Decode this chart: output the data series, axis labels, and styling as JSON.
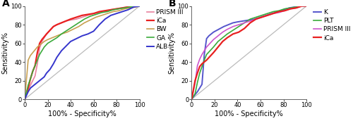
{
  "panel_A": {
    "title": "A",
    "xlabel": "100% - Specificity%",
    "ylabel": "Sensitivity%",
    "curves": {
      "PRISM III": {
        "color": "#e8819e",
        "linewidth": 1.2,
        "x": [
          0,
          3,
          5,
          7,
          9,
          11,
          13,
          15,
          17,
          19,
          22,
          25,
          28,
          32,
          36,
          40,
          45,
          50,
          55,
          60,
          65,
          70,
          75,
          80,
          85,
          90,
          95,
          100
        ],
        "y": [
          0,
          10,
          15,
          20,
          25,
          38,
          55,
          62,
          66,
          70,
          74,
          78,
          80,
          82,
          84,
          85,
          86,
          88,
          90,
          92,
          93,
          94,
          96,
          97,
          98,
          99,
          100,
          100
        ]
      },
      "iCa": {
        "color": "#e82020",
        "linewidth": 1.6,
        "x": [
          0,
          3,
          5,
          7,
          9,
          11,
          13,
          15,
          17,
          19,
          22,
          25,
          28,
          32,
          36,
          40,
          45,
          50,
          55,
          60,
          65,
          70,
          75,
          80,
          85,
          90,
          95,
          100
        ],
        "y": [
          0,
          12,
          22,
          30,
          36,
          50,
          60,
          64,
          67,
          70,
          74,
          78,
          80,
          82,
          84,
          86,
          88,
          90,
          91,
          92,
          94,
          95,
          96,
          97,
          98,
          99,
          100,
          100
        ]
      },
      "BW": {
        "color": "#c8a050",
        "linewidth": 1.2,
        "x": [
          0,
          3,
          5,
          7,
          9,
          11,
          13,
          15,
          17,
          20,
          24,
          28,
          32,
          37,
          42,
          47,
          52,
          57,
          62,
          67,
          72,
          77,
          82,
          87,
          92,
          97,
          100
        ],
        "y": [
          0,
          42,
          47,
          50,
          53,
          56,
          58,
          60,
          62,
          64,
          66,
          68,
          70,
          72,
          75,
          78,
          82,
          85,
          88,
          90,
          92,
          94,
          95,
          97,
          98,
          99,
          100
        ]
      },
      "GA": {
        "color": "#3aaa3a",
        "linewidth": 1.2,
        "x": [
          0,
          3,
          5,
          7,
          9,
          11,
          13,
          15,
          17,
          20,
          24,
          28,
          32,
          37,
          42,
          47,
          52,
          57,
          62,
          67,
          72,
          77,
          82,
          87,
          92,
          97,
          100
        ],
        "y": [
          0,
          15,
          22,
          30,
          36,
          42,
          48,
          52,
          56,
          60,
          63,
          66,
          70,
          74,
          78,
          82,
          86,
          89,
          91,
          93,
          94,
          96,
          97,
          98,
          99,
          100,
          100
        ]
      },
      "ALB": {
        "color": "#3535cc",
        "linewidth": 1.4,
        "x": [
          0,
          3,
          5,
          7,
          9,
          11,
          13,
          15,
          17,
          19,
          22,
          25,
          28,
          32,
          36,
          40,
          45,
          50,
          55,
          60,
          65,
          70,
          75,
          80,
          85,
          90,
          95,
          100
        ],
        "y": [
          0,
          8,
          12,
          14,
          16,
          18,
          20,
          22,
          24,
          28,
          32,
          38,
          45,
          52,
          57,
          62,
          65,
          68,
          70,
          73,
          80,
          86,
          90,
          92,
          94,
          96,
          99,
          100
        ]
      }
    },
    "legend_order": [
      "PRISM III",
      "iCa",
      "BW",
      "GA",
      "ALB"
    ]
  },
  "panel_B": {
    "title": "B",
    "xlabel": "100% - Specificity%",
    "ylabel": "Sensitivity%",
    "curves": {
      "K": {
        "color": "#5555cc",
        "linewidth": 1.4,
        "x": [
          0,
          3,
          5,
          7,
          9,
          11,
          13,
          15,
          17,
          19,
          22,
          25,
          28,
          32,
          36,
          40,
          45,
          50,
          55,
          60,
          65,
          70,
          75,
          80,
          85,
          90,
          95,
          100
        ],
        "y": [
          0,
          5,
          8,
          12,
          16,
          48,
          65,
          68,
          70,
          72,
          74,
          76,
          78,
          80,
          82,
          83,
          84,
          85,
          86,
          88,
          90,
          92,
          94,
          96,
          98,
          99,
          100,
          100
        ]
      },
      "PLT": {
        "color": "#3aaa3a",
        "linewidth": 1.2,
        "x": [
          0,
          3,
          5,
          7,
          9,
          11,
          13,
          16,
          19,
          23,
          27,
          31,
          36,
          41,
          46,
          51,
          56,
          61,
          66,
          71,
          76,
          81,
          86,
          91,
          96,
          100
        ],
        "y": [
          0,
          6,
          18,
          28,
          35,
          42,
          48,
          52,
          56,
          62,
          66,
          70,
          74,
          78,
          82,
          86,
          88,
          90,
          92,
          94,
          95,
          97,
          98,
          99,
          100,
          100
        ]
      },
      "PRISM III": {
        "color": "#cc55cc",
        "linewidth": 1.2,
        "x": [
          0,
          3,
          5,
          7,
          9,
          11,
          13,
          16,
          19,
          23,
          27,
          31,
          36,
          41,
          46,
          51,
          56,
          61,
          66,
          71,
          76,
          81,
          86,
          91,
          96,
          100
        ],
        "y": [
          0,
          18,
          36,
          43,
          48,
          52,
          56,
          60,
          64,
          68,
          72,
          75,
          78,
          80,
          82,
          84,
          86,
          88,
          90,
          92,
          93,
          95,
          97,
          98,
          100,
          100
        ]
      },
      "iCa": {
        "color": "#e82020",
        "linewidth": 1.6,
        "x": [
          0,
          3,
          5,
          7,
          9,
          11,
          13,
          16,
          19,
          23,
          27,
          31,
          36,
          41,
          46,
          51,
          56,
          61,
          66,
          71,
          76,
          81,
          86,
          91,
          96,
          100
        ],
        "y": [
          0,
          20,
          28,
          35,
          38,
          40,
          42,
          46,
          50,
          56,
          62,
          66,
          70,
          72,
          76,
          82,
          86,
          88,
          90,
          92,
          94,
          95,
          97,
          98,
          100,
          100
        ]
      }
    },
    "legend_order": [
      "K",
      "PLT",
      "PRISM III",
      "iCa"
    ]
  },
  "diagonal": {
    "color": "#bbbbbb",
    "linewidth": 0.9
  },
  "tick_fontsize": 6,
  "label_fontsize": 7,
  "title_fontsize": 10,
  "legend_fontsize": 6.5,
  "xlim": [
    0,
    100
  ],
  "ylim": [
    0,
    100
  ],
  "xticks": [
    0,
    20,
    40,
    60,
    80,
    100
  ],
  "yticks": [
    0,
    20,
    40,
    60,
    80,
    100
  ]
}
